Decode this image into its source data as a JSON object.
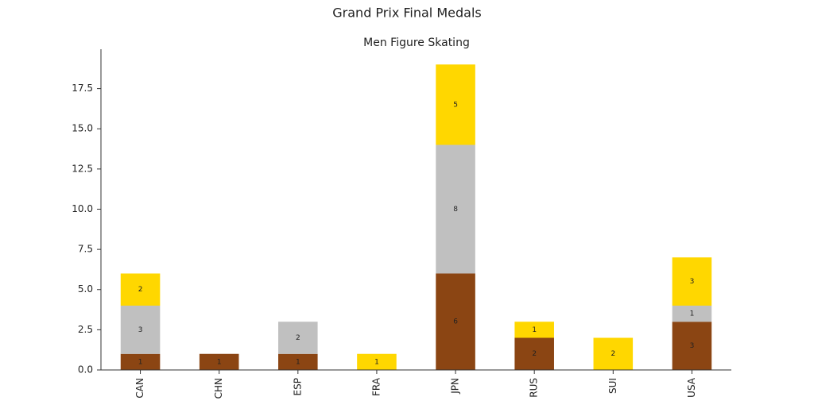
{
  "chart_data": {
    "type": "bar",
    "stacked": true,
    "title": "Grand Prix Final Medals",
    "subtitle": "Men Figure Skating",
    "categories": [
      "CAN",
      "CHN",
      "ESP",
      "FRA",
      "JPN",
      "RUS",
      "SUI",
      "USA"
    ],
    "series": [
      {
        "color": "#8B4513",
        "values": [
          1,
          1,
          1,
          0,
          6,
          2,
          0,
          3
        ]
      },
      {
        "color": "#C0C0C0",
        "values": [
          3,
          0,
          2,
          0,
          8,
          0,
          0,
          1
        ]
      },
      {
        "color": "#FFD700",
        "values": [
          2,
          0,
          0,
          1,
          5,
          1,
          2,
          3
        ]
      }
    ],
    "ylim": [
      0,
      19.95
    ],
    "yticks": [
      {
        "value": 0,
        "label": "0.0"
      },
      2.5,
      {
        "value": 5,
        "label": "5.0"
      },
      7.5,
      {
        "value": 10,
        "label": "10.0"
      },
      12.5,
      {
        "value": 15,
        "label": "15.0"
      },
      17.5
    ],
    "grid": false
  }
}
